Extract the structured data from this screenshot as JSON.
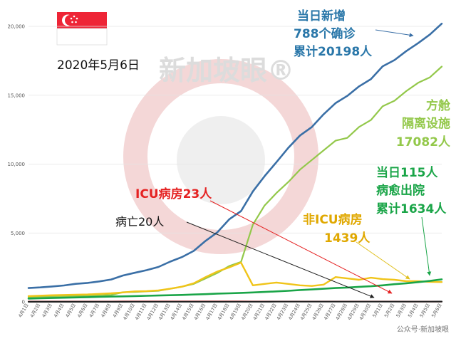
{
  "header": {
    "date": "2020年5月6日",
    "watermark": "新加坡眼®",
    "source_watermark": "公众号·新加坡眼"
  },
  "flag": {
    "red": "#ee2536",
    "white": "#ffffff"
  },
  "annotations": {
    "confirmed": [
      "当日新增",
      "788个确诊",
      "累计20198人"
    ],
    "dorm": [
      "方舱",
      "隔离设施",
      "17082人"
    ],
    "discharged": [
      "当日115人",
      "病愈出院",
      "累计1634人"
    ],
    "icu": [
      "ICU病房23人"
    ],
    "deaths": [
      "病亡20人"
    ],
    "nonicu": [
      "非ICU病房",
      "1439人"
    ]
  },
  "colors": {
    "confirmed": "#3a6fa6",
    "dorm": "#93c84a",
    "nonicu": "#f0c419",
    "discharged": "#1aa548",
    "icu": "#e52222",
    "deaths": "#222222",
    "confirmed_text": "#2a77a9",
    "dorm_text": "#93c84a",
    "discharged_text": "#1aa548",
    "icu_text": "#e52222",
    "nonicu_text": "#e0a800"
  },
  "chart_data": {
    "type": "line",
    "ylim": [
      0,
      20000
    ],
    "y_ticks": [
      0,
      5000,
      10000,
      15000,
      20000
    ],
    "y_tick_labels": [
      "0",
      "5,000",
      "10,000",
      "15,000",
      "20,000"
    ],
    "x": [
      "4月1日",
      "4月2日",
      "4月3日",
      "4月4日",
      "4月5日",
      "4月6日",
      "4月7日",
      "4月8日",
      "4月9日",
      "4月10日",
      "4月11日",
      "4月12日",
      "4月13日",
      "4月14日",
      "4月15日",
      "4月16日",
      "4月17日",
      "4月18日",
      "4月19日",
      "4月20日",
      "4月21日",
      "4月22日",
      "4月23日",
      "4月24日",
      "4月25日",
      "4月26日",
      "4月27日",
      "4月28日",
      "4月29日",
      "4月30日",
      "5月1日",
      "5月2日",
      "5月3日",
      "5月4日",
      "5月5日",
      "5月6日"
    ],
    "series": [
      {
        "key": "confirmed",
        "values": [
          1000,
          1049,
          1114,
          1189,
          1309,
          1375,
          1481,
          1623,
          1910,
          2108,
          2299,
          2532,
          2918,
          3252,
          3699,
          4427,
          5050,
          5992,
          6588,
          8014,
          9125,
          10141,
          11178,
          12075,
          12693,
          13624,
          14423,
          14951,
          15641,
          16169,
          17101,
          17548,
          18205,
          18778,
          19410,
          20198
        ]
      },
      {
        "key": "dorm",
        "values": [
          330,
          350,
          380,
          400,
          430,
          450,
          470,
          500,
          700,
          720,
          760,
          800,
          950,
          1100,
          1300,
          1700,
          2100,
          2600,
          2900,
          5600,
          7000,
          7900,
          8700,
          9600,
          10300,
          11000,
          11700,
          11900,
          12700,
          13200,
          14200,
          14600,
          15300,
          15900,
          16300,
          17082
        ]
      },
      {
        "key": "nonicu",
        "values": [
          420,
          450,
          480,
          500,
          520,
          540,
          580,
          620,
          680,
          760,
          780,
          830,
          950,
          1100,
          1350,
          1800,
          2200,
          2500,
          2850,
          1200,
          1300,
          1400,
          1300,
          1200,
          1150,
          1250,
          1800,
          1700,
          1600,
          1750,
          1650,
          1600,
          1500,
          1500,
          1450,
          1439
        ]
      },
      {
        "key": "discharged",
        "values": [
          240,
          260,
          280,
          300,
          320,
          340,
          360,
          380,
          400,
          420,
          440,
          460,
          480,
          500,
          530,
          560,
          600,
          620,
          650,
          680,
          720,
          760,
          800,
          860,
          900,
          950,
          1000,
          1040,
          1090,
          1130,
          1200,
          1280,
          1350,
          1430,
          1519,
          1634
        ]
      },
      {
        "key": "icu",
        "values": [
          24,
          24,
          25,
          26,
          26,
          27,
          27,
          28,
          29,
          29,
          29,
          30,
          30,
          31,
          31,
          31,
          31,
          30,
          30,
          28,
          27,
          27,
          26,
          26,
          25,
          25,
          25,
          24,
          24,
          24,
          24,
          24,
          23,
          23,
          23,
          23
        ]
      },
      {
        "key": "deaths",
        "values": [
          3,
          4,
          5,
          5,
          5,
          6,
          6,
          6,
          7,
          8,
          8,
          8,
          8,
          9,
          10,
          10,
          10,
          11,
          11,
          12,
          12,
          13,
          14,
          14,
          14,
          15,
          15,
          16,
          17,
          18,
          18,
          18,
          18,
          18,
          18,
          20
        ]
      }
    ]
  }
}
